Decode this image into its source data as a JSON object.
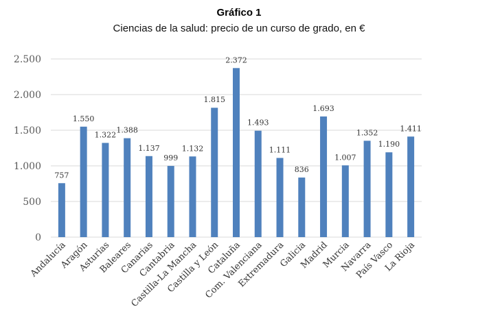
{
  "chart_data": {
    "type": "bar",
    "title": "Gráfico 1",
    "subtitle": "Ciencias de la salud: precio de un curso de grado, en €",
    "categories": [
      "Andalucía",
      "Aragón",
      "Asturias",
      "Baleares",
      "Canarias",
      "Cantabria",
      "Castilla-La Mancha",
      "Castilla y León",
      "Cataluña",
      "Com. Valenciana",
      "Extremadura",
      "Galicia",
      "Madrid",
      "Murcia",
      "Navarra",
      "País Vasco",
      "La Rioja"
    ],
    "values": [
      757,
      1550,
      1322,
      1388,
      1137,
      999,
      1132,
      1815,
      2372,
      1493,
      1111,
      836,
      1693,
      1007,
      1352,
      1190,
      1411
    ],
    "value_labels": [
      "757",
      "1.550",
      "1.322",
      "1.388",
      "1.137",
      "999",
      "1.132",
      "1.815",
      "2.372",
      "1.493",
      "1.111",
      "836",
      "1.693",
      "1.007",
      "1.352",
      "1.190",
      "1.411"
    ],
    "yticks": [
      0,
      500,
      1000,
      1500,
      2000,
      2500
    ],
    "ytick_labels": [
      "0",
      "500",
      "1.000",
      "1.500",
      "2.000",
      "2.500"
    ],
    "ylim": [
      0,
      2500
    ],
    "xlabel": "",
    "ylabel": "",
    "grid": true,
    "legend": "none",
    "bar_color": "#4f81bd",
    "grid_color": "#d9d9d9"
  }
}
